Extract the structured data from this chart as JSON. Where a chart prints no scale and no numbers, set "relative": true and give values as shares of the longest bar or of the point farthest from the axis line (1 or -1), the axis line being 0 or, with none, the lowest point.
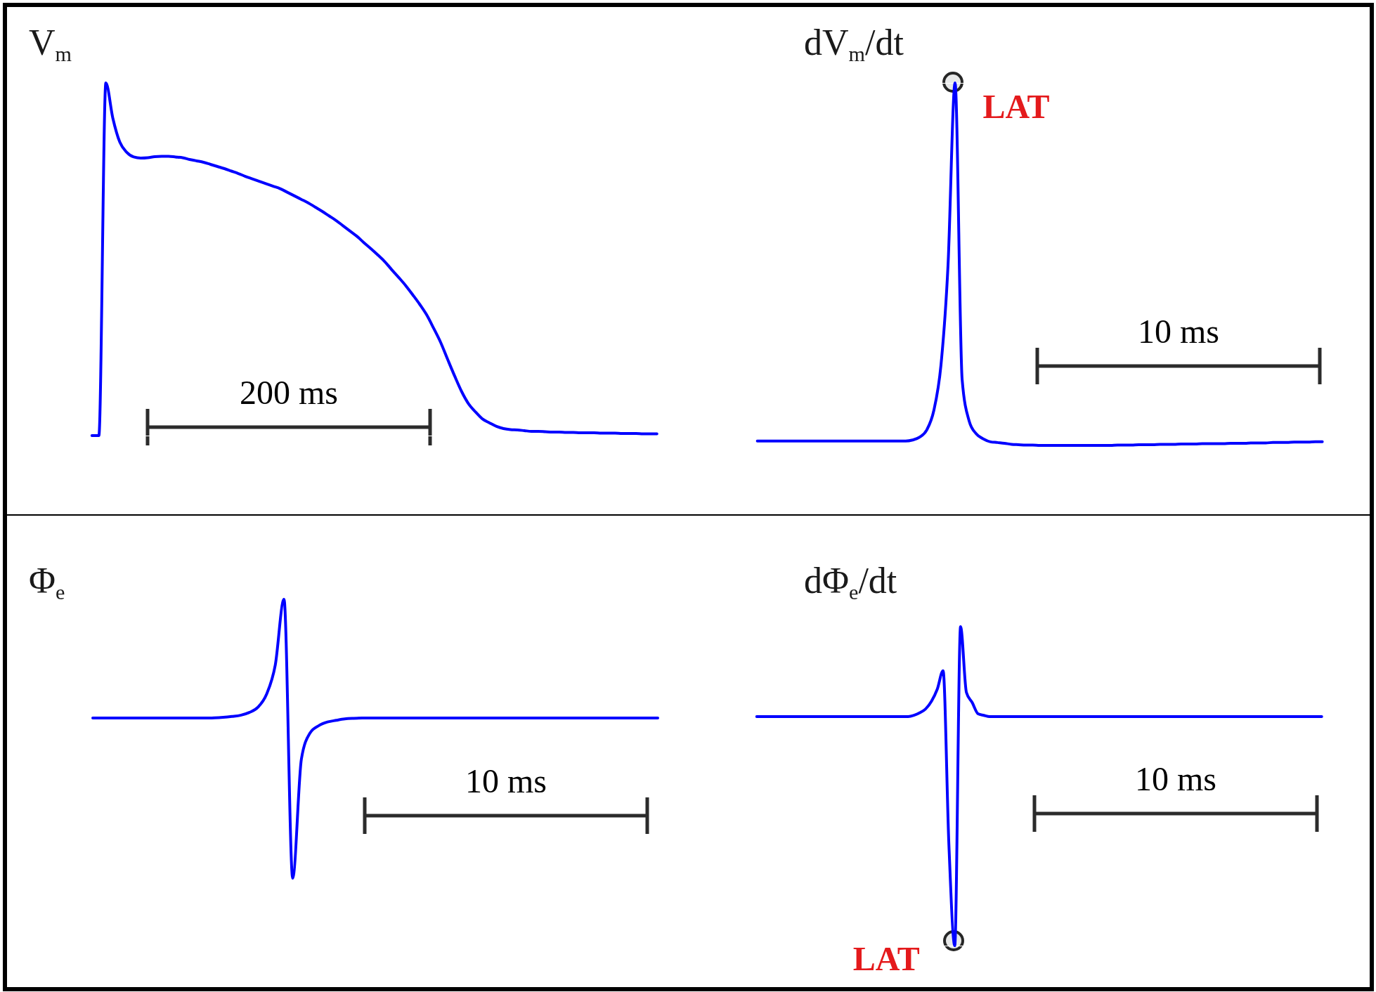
{
  "chart_data": [
    {
      "type": "line",
      "title": "V$_{m}$",
      "relative": true,
      "categories": [
        null,
        null,
        null,
        null,
        null,
        null,
        null,
        null,
        null,
        null,
        null,
        null,
        null,
        null,
        null,
        null,
        null,
        null,
        null,
        null,
        null,
        null,
        null,
        null,
        null,
        null,
        null,
        null,
        null,
        null,
        null,
        null,
        null,
        null,
        null,
        null,
        null,
        null,
        null,
        null,
        null,
        null,
        null,
        null,
        null,
        null,
        null,
        null,
        null,
        null,
        null,
        null,
        null,
        null,
        null,
        null,
        null,
        null,
        null,
        null,
        null,
        null,
        null,
        null,
        null,
        null,
        null,
        null,
        null,
        null,
        null,
        null,
        null,
        null,
        null,
        null,
        null,
        null,
        null,
        null,
        null,
        null
      ],
      "series": [
        {
          "color": "#0000ff",
          "values": [
            0,
            0,
            1,
            0.9,
            0.832,
            0.803,
            0.79,
            0.787,
            0.788,
            0.791,
            0.792,
            0.792,
            0.79,
            0.788,
            0.783,
            0.779,
            0.775,
            0.769,
            0.763,
            0.757,
            0.75,
            0.743,
            0.735,
            0.728,
            0.721,
            0.714,
            0.707,
            0.7,
            0.69,
            0.68,
            0.67,
            0.66,
            0.648,
            0.636,
            0.623,
            0.61,
            0.595,
            0.58,
            0.565,
            0.547,
            0.53,
            0.512,
            0.493,
            0.47,
            0.448,
            0.425,
            0.399,
            0.372,
            0.342,
            0.304,
            0.264,
            0.216,
            0.169,
            0.125,
            0.09,
            0.067,
            0.047,
            0.036,
            0.026,
            0.02,
            0.017,
            0.016,
            0.014,
            0.012,
            0.012,
            0.011,
            0.01,
            0.01,
            0.009,
            0.009,
            0.008,
            0.008,
            0.008,
            0.007,
            0.007,
            0.007,
            0.006,
            0.006,
            0.006,
            0.005,
            0.005,
            0.005
          ]
        }
      ],
      "annotations": [
        "200 ms"
      ]
    },
    {
      "type": "line",
      "title": "dV$_{m}$/dt",
      "relative": true,
      "categories": [
        null,
        null,
        null,
        null,
        null,
        null,
        null,
        null,
        null,
        null,
        null,
        null,
        null,
        null,
        null,
        null,
        null,
        null,
        null,
        null,
        null,
        null,
        null,
        null,
        null,
        null,
        null,
        null,
        null,
        null,
        null,
        null,
        null,
        null,
        null,
        null,
        null,
        null,
        null,
        null,
        null,
        null,
        null,
        null,
        null,
        null,
        null,
        null,
        null,
        null,
        null,
        null,
        null,
        null,
        null,
        null,
        null,
        null,
        null,
        null,
        null,
        null,
        null,
        null,
        null,
        null,
        null,
        null,
        null,
        null,
        null,
        null,
        null,
        null,
        null,
        null,
        null,
        null,
        null,
        null,
        null
      ],
      "series": [
        {
          "color": "#0000ff",
          "values": [
            0.012,
            0.012,
            0.012,
            0.012,
            0.012,
            0.012,
            0.012,
            0.012,
            0.012,
            0.012,
            0.012,
            0.012,
            0.012,
            0.012,
            0.012,
            0.012,
            0.012,
            0.012,
            0.012,
            0.012,
            0.012,
            0.012,
            0.015,
            0.023,
            0.043,
            0.097,
            0.221,
            0.496,
            1,
            0.182,
            0.067,
            0.032,
            0.018,
            0.01,
            0.008,
            0.006,
            0.003,
            0.002,
            0.001,
            0.001,
            0,
            0,
            0,
            0,
            0,
            0,
            0,
            0,
            0,
            0,
            0,
            0.001,
            0.001,
            0.001,
            0.002,
            0.002,
            0.002,
            0.003,
            0.003,
            0.003,
            0.004,
            0.004,
            0.004,
            0.005,
            0.005,
            0.005,
            0.005,
            0.006,
            0.006,
            0.006,
            0.007,
            0.007,
            0.007,
            0.008,
            0.008,
            0.008,
            0.009,
            0.009,
            0.009,
            0.01,
            0.01
          ]
        }
      ],
      "annotations": [
        "LAT",
        "10 ms"
      ]
    },
    {
      "type": "line",
      "title": "Φ$_{e}$",
      "relative": true,
      "categories": [
        null,
        null,
        null,
        null,
        null,
        null,
        null,
        null,
        null,
        null,
        null,
        null,
        null,
        null,
        null,
        null,
        null,
        null,
        null,
        null,
        null,
        null,
        null,
        null,
        null,
        null,
        null,
        null,
        null,
        null,
        null,
        null,
        null,
        null,
        null,
        null,
        null,
        null,
        null,
        null,
        null,
        null,
        null,
        null,
        null,
        null,
        null,
        null,
        null,
        null,
        null,
        null,
        null,
        null,
        null,
        null,
        null,
        null,
        null,
        null,
        null,
        null,
        null,
        null,
        null,
        null
      ],
      "series": [
        {
          "color": "#0000ff",
          "values": [
            0.574,
            0.574,
            0.574,
            0.574,
            0.574,
            0.574,
            0.574,
            0.574,
            0.574,
            0.574,
            0.574,
            0.574,
            0.574,
            0.574,
            0.575,
            0.577,
            0.58,
            0.584,
            0.594,
            0.613,
            0.66,
            0.765,
            1,
            0,
            0.427,
            0.521,
            0.547,
            0.56,
            0.566,
            0.571,
            0.573,
            0.574,
            0.574,
            0.574,
            0.574,
            0.574,
            0.574,
            0.574,
            0.574,
            0.574,
            0.574,
            0.574,
            0.574,
            0.574,
            0.574,
            0.574,
            0.574,
            0.574,
            0.574,
            0.574,
            0.574,
            0.574,
            0.574,
            0.574,
            0.574,
            0.574,
            0.574,
            0.574,
            0.574,
            0.574,
            0.574,
            0.574,
            0.574,
            0.574,
            0.574,
            0.574
          ]
        }
      ],
      "annotations": [
        "10 ms"
      ]
    },
    {
      "type": "line",
      "title": "dΦ$_{e}$/dt",
      "relative": true,
      "categories": [
        null,
        null,
        null,
        null,
        null,
        null,
        null,
        null,
        null,
        null,
        null,
        null,
        null,
        null,
        null,
        null,
        null,
        null,
        null,
        null,
        null,
        null,
        null,
        null,
        null,
        null,
        null,
        null,
        null,
        null,
        null,
        null,
        null,
        null,
        null,
        null,
        null,
        null,
        null,
        null,
        null,
        null,
        null,
        null,
        null,
        null,
        null,
        null,
        null,
        null,
        null,
        null,
        null,
        null,
        null,
        null,
        null,
        null,
        null,
        null,
        null,
        null,
        null,
        null,
        null,
        null,
        null,
        null,
        null,
        null,
        null,
        null,
        null,
        null,
        null,
        null,
        null,
        null,
        null,
        null,
        null,
        null,
        null,
        null,
        null,
        null,
        null,
        null,
        null,
        null,
        null,
        null,
        null,
        null,
        null,
        null,
        null,
        null
      ],
      "series": [
        {
          "color": "#0000ff",
          "values": [
            0.718,
            0.718,
            0.718,
            0.718,
            0.718,
            0.718,
            0.718,
            0.718,
            0.718,
            0.718,
            0.718,
            0.718,
            0.718,
            0.718,
            0.718,
            0.718,
            0.718,
            0.718,
            0.718,
            0.718,
            0.718,
            0.718,
            0.718,
            0.718,
            0.718,
            0.718,
            0.718,
            0.722,
            0.73,
            0.742,
            0.766,
            0.804,
            0.862,
            0.315,
            0,
            1,
            0.794,
            0.762,
            0.727,
            0.722,
            0.718,
            0.718,
            0.718,
            0.718,
            0.718,
            0.718,
            0.718,
            0.718,
            0.718,
            0.718,
            0.718,
            0.718,
            0.718,
            0.718,
            0.718,
            0.718,
            0.718,
            0.718,
            0.718,
            0.718,
            0.718,
            0.718,
            0.718,
            0.718,
            0.718,
            0.718,
            0.718,
            0.718,
            0.718,
            0.718,
            0.718,
            0.718,
            0.718,
            0.718,
            0.718,
            0.718,
            0.718,
            0.718,
            0.718,
            0.718,
            0.718,
            0.718,
            0.718,
            0.718,
            0.718,
            0.718,
            0.718,
            0.718,
            0.718,
            0.718,
            0.718,
            0.718,
            0.718,
            0.718,
            0.718,
            0.718,
            0.718,
            0.718
          ]
        }
      ],
      "annotations": [
        "LAT",
        "10 ms"
      ]
    }
  ]
}
